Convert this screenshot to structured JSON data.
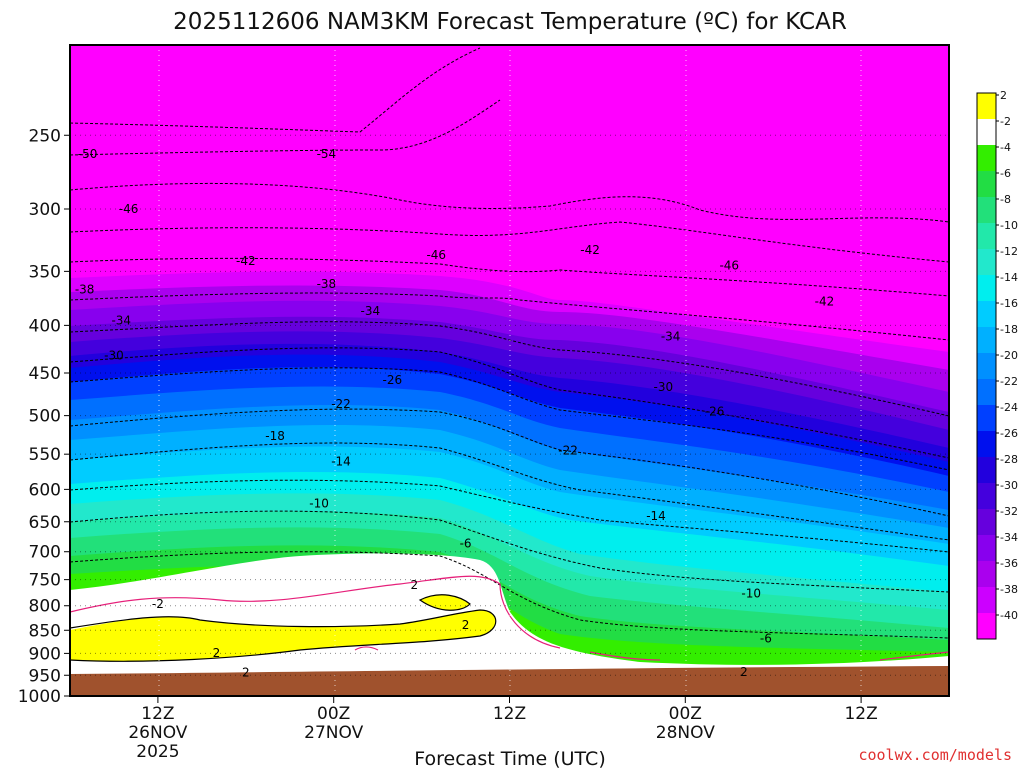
{
  "chart_data": {
    "type": "time-height contour",
    "title": "2025112606 NAM3KM Forecast Temperature (ºC) for KCAR",
    "xlabel": "Forecast Time (UTC)",
    "ylabel": "",
    "credit": "coolwx.com/models",
    "y_ticks": [
      250,
      300,
      350,
      400,
      450,
      500,
      550,
      600,
      650,
      700,
      750,
      800,
      850,
      900,
      950,
      1000
    ],
    "ylim": [
      1000,
      200
    ],
    "x_ticks": [
      {
        "label": "12Z",
        "date": "26NOV",
        "year": "2025",
        "hour": 6
      },
      {
        "label": "00Z",
        "date": "27NOV",
        "year": "",
        "hour": 18
      },
      {
        "label": "12Z",
        "date": "",
        "year": "",
        "hour": 30
      },
      {
        "label": "00Z",
        "date": "28NOV",
        "year": "",
        "hour": 42
      },
      {
        "label": "12Z",
        "date": "",
        "year": "",
        "hour": 54
      }
    ],
    "xlim_hours": [
      0,
      60
    ],
    "colorbar": {
      "labels": [
        "2",
        "-2",
        "-4",
        "-6",
        "-8",
        "-10",
        "-12",
        "-14",
        "-16",
        "-18",
        "-20",
        "-22",
        "-24",
        "-26",
        "-28",
        "-30",
        "-32",
        "-34",
        "-36",
        "-38",
        "-40"
      ],
      "colors": [
        "#ffff00",
        "#ffffff",
        "#33ee00",
        "#22dd44",
        "#22e07a",
        "#22e8aa",
        "#22e8cc",
        "#00eeee",
        "#00ccff",
        "#00b0ff",
        "#0090ff",
        "#0070ff",
        "#0040ff",
        "#0010ee",
        "#2200dd",
        "#4400dd",
        "#6600dd",
        "#8800ee",
        "#aa00ee",
        "#cc00ff",
        "#ff00ff"
      ]
    },
    "contour_labels": [
      {
        "text": "-50",
        "h": 1.2,
        "p": 262
      },
      {
        "text": "-54",
        "h": 17.5,
        "p": 262
      },
      {
        "text": "-46",
        "h": 4,
        "p": 300
      },
      {
        "text": "-42",
        "h": 12,
        "p": 341
      },
      {
        "text": "-46",
        "h": 25,
        "p": 336
      },
      {
        "text": "-42",
        "h": 35.5,
        "p": 332
      },
      {
        "text": "-46",
        "h": 45,
        "p": 345
      },
      {
        "text": "-42",
        "h": 51.5,
        "p": 377
      },
      {
        "text": "-38",
        "h": 1,
        "p": 366
      },
      {
        "text": "-38",
        "h": 17.5,
        "p": 361
      },
      {
        "text": "-34",
        "h": 3.5,
        "p": 395
      },
      {
        "text": "-34",
        "h": 20.5,
        "p": 386
      },
      {
        "text": "-34",
        "h": 41,
        "p": 411
      },
      {
        "text": "-30",
        "h": 3,
        "p": 431
      },
      {
        "text": "-30",
        "h": 40.5,
        "p": 466
      },
      {
        "text": "-26",
        "h": 22,
        "p": 458
      },
      {
        "text": "-26",
        "h": 44,
        "p": 495
      },
      {
        "text": "-22",
        "h": 18.5,
        "p": 486
      },
      {
        "text": "-22",
        "h": 34,
        "p": 545
      },
      {
        "text": "-18",
        "h": 14,
        "p": 526
      },
      {
        "text": "-14",
        "h": 18.5,
        "p": 560
      },
      {
        "text": "-14",
        "h": 40,
        "p": 641
      },
      {
        "text": "-10",
        "h": 17,
        "p": 621
      },
      {
        "text": "-10",
        "h": 46.5,
        "p": 776
      },
      {
        "text": "-6",
        "h": 27,
        "p": 686
      },
      {
        "text": "-6",
        "h": 47.5,
        "p": 867
      },
      {
        "text": "2",
        "h": 23.5,
        "p": 760
      },
      {
        "text": "-2",
        "h": 6,
        "p": 797
      },
      {
        "text": "2",
        "h": 27,
        "p": 839
      },
      {
        "text": "2",
        "h": 10,
        "p": 899
      },
      {
        "text": "2",
        "h": 12,
        "p": 943
      },
      {
        "text": "2",
        "h": 46,
        "p": 942
      }
    ]
  }
}
